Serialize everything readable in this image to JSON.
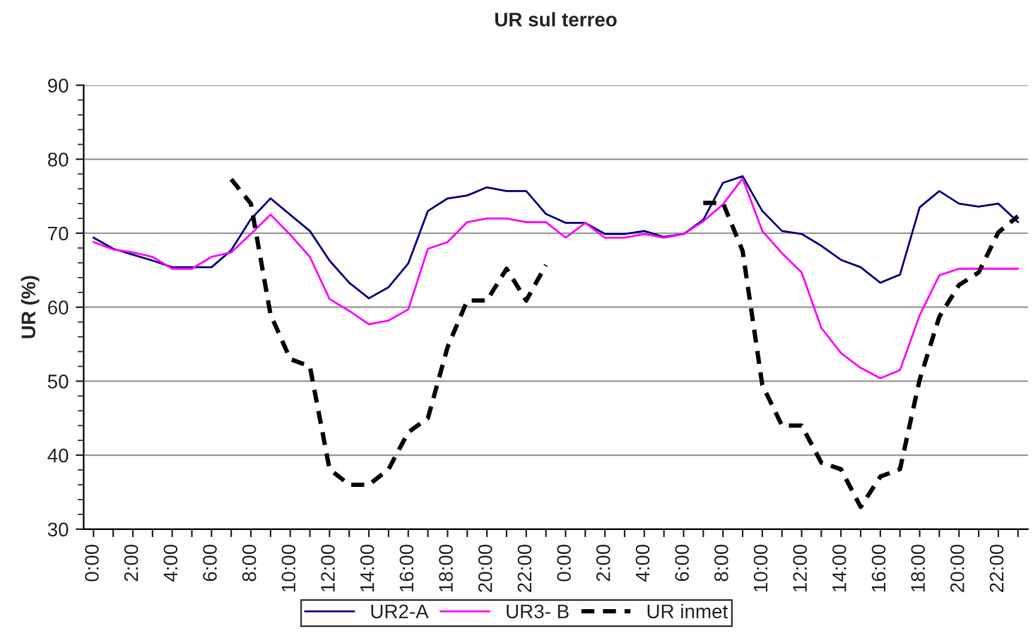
{
  "chart_data": {
    "type": "line",
    "title": "UR sul terreo",
    "ylabel": "UR (%)",
    "categories": [
      "0:00",
      null,
      "2:00",
      null,
      "4:00",
      null,
      "6:00",
      null,
      "8:00",
      null,
      "10:00",
      null,
      "12:00",
      null,
      "14:00",
      null,
      "16:00",
      null,
      "18:00",
      null,
      "20:00",
      null,
      "22:00",
      null,
      "0:00",
      null,
      "2:00",
      null,
      "4:00",
      null,
      "6:00",
      null,
      "8:00",
      null,
      "10:00",
      null,
      "12:00",
      null,
      "14:00",
      null,
      "16:00",
      null,
      "18:00",
      null,
      "20:00",
      null,
      "22:00",
      null
    ],
    "series": [
      {
        "name": "UR2-A",
        "color": "#000080",
        "line_style": "solid",
        "values": [
          69.4,
          67.9,
          67.1,
          66.3,
          65.4,
          65.4,
          65.4,
          67.7,
          71.9,
          74.7,
          72.5,
          70.3,
          66.3,
          63.3,
          61.2,
          62.7,
          65.9,
          73.0,
          74.7,
          75.1,
          76.2,
          75.7,
          75.7,
          72.6,
          71.4,
          71.4,
          69.9,
          69.9,
          70.3,
          69.5,
          69.9,
          71.8,
          76.8,
          77.7,
          73.0,
          70.3,
          69.9,
          68.3,
          66.4,
          65.4,
          63.3,
          64.4,
          73.5,
          75.7,
          74.0,
          73.6,
          74.0,
          71.5
        ]
      },
      {
        "name": "UR3- B",
        "color": "#ff00ff",
        "line_style": "solid",
        "values": [
          68.8,
          67.8,
          67.4,
          66.8,
          65.2,
          65.2,
          66.8,
          67.4,
          69.9,
          72.5,
          69.8,
          66.8,
          61.1,
          59.5,
          57.7,
          58.2,
          59.7,
          67.9,
          68.8,
          71.5,
          72.0,
          72.0,
          71.5,
          71.5,
          69.4,
          71.4,
          69.4,
          69.4,
          69.9,
          69.4,
          69.9,
          71.6,
          73.9,
          77.4,
          70.3,
          67.3,
          64.7,
          57.2,
          53.8,
          51.8,
          50.4,
          51.5,
          58.9,
          64.3,
          65.2,
          65.2,
          65.2,
          65.2
        ]
      },
      {
        "name": "UR inmet",
        "color": "#000000",
        "line_style": "dashed",
        "values": [
          null,
          null,
          null,
          null,
          null,
          null,
          null,
          77.3,
          74.0,
          59.0,
          53.0,
          52.0,
          38.1,
          36.0,
          36.0,
          38.1,
          43.1,
          45.0,
          54.6,
          60.9,
          60.9,
          65.2,
          60.9,
          65.7,
          null,
          null,
          null,
          null,
          null,
          null,
          null,
          74.1,
          74.1,
          67.6,
          49.5,
          44.0,
          44.0,
          39.0,
          38.1,
          33.0,
          37.1,
          38.1,
          50.2,
          58.7,
          63.0,
          64.7,
          70.1,
          72.3
        ]
      }
    ],
    "ylim": [
      30,
      90
    ],
    "yticks": [
      30,
      {
        "value": 32,
        "label": null
      },
      {
        "value": 34,
        "label": null
      },
      {
        "value": 36,
        "label": null
      },
      {
        "value": 38,
        "label": null
      },
      40,
      {
        "value": 42,
        "label": null
      },
      {
        "value": 44,
        "label": null
      },
      {
        "value": 46,
        "label": null
      },
      {
        "value": 48,
        "label": null
      },
      50,
      {
        "value": 52,
        "label": null
      },
      {
        "value": 54,
        "label": null
      },
      {
        "value": 56,
        "label": null
      },
      {
        "value": 58,
        "label": null
      },
      60,
      {
        "value": 62,
        "label": null
      },
      {
        "value": 64,
        "label": null
      },
      {
        "value": 66,
        "label": null
      },
      {
        "value": 68,
        "label": null
      },
      70,
      {
        "value": 72,
        "label": null
      },
      {
        "value": 74,
        "label": null
      },
      {
        "value": 76,
        "label": null
      },
      {
        "value": 78,
        "label": null
      },
      80,
      {
        "value": 82,
        "label": null
      },
      {
        "value": 84,
        "label": null
      },
      {
        "value": 86,
        "label": null
      },
      {
        "value": 88,
        "label": null
      },
      90
    ],
    "grid": "y",
    "legend": "bottom"
  }
}
